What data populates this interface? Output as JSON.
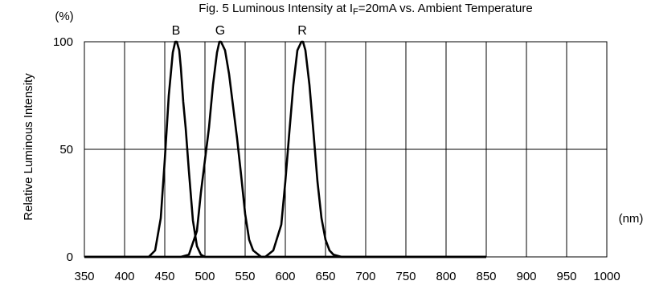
{
  "chart_data": {
    "type": "line",
    "title": "Fig. 5 Luminous Intensity at I",
    "title_subscript": "F",
    "title_suffix": "=20mA vs. Ambient Temperature",
    "ylabel": "Relative Luminous Intensity",
    "y_unit": "(%)",
    "x_unit": "(nm)",
    "xlim": [
      350,
      1000
    ],
    "ylim": [
      0,
      100
    ],
    "x_ticks": [
      350,
      400,
      450,
      500,
      550,
      600,
      650,
      700,
      750,
      800,
      850,
      900,
      950,
      1000
    ],
    "y_ticks": [
      0,
      50,
      100
    ],
    "grid": true,
    "series": [
      {
        "name": "B",
        "x": [
          350,
          430,
          438,
          445,
          450,
          455,
          460,
          463,
          465,
          468,
          470,
          473,
          476,
          480,
          485,
          490,
          495,
          500,
          510,
          850
        ],
        "y": [
          0,
          0,
          3,
          18,
          45,
          75,
          95,
          100,
          100,
          96,
          88,
          72,
          60,
          40,
          17,
          5,
          1,
          0,
          0,
          0
        ]
      },
      {
        "name": "G",
        "x": [
          350,
          470,
          480,
          490,
          495,
          500,
          505,
          510,
          515,
          518,
          520,
          525,
          530,
          535,
          540,
          545,
          550,
          555,
          560,
          570,
          580,
          850
        ],
        "y": [
          0,
          0,
          1,
          12,
          30,
          45,
          60,
          80,
          95,
          100,
          100,
          96,
          85,
          70,
          55,
          38,
          20,
          8,
          3,
          0,
          0,
          0
        ]
      },
      {
        "name": "R",
        "x": [
          350,
          575,
          585,
          595,
          600,
          605,
          610,
          615,
          620,
          622,
          625,
          630,
          635,
          640,
          645,
          650,
          655,
          660,
          670,
          680,
          850
        ],
        "y": [
          0,
          0,
          3,
          15,
          35,
          58,
          80,
          96,
          100,
          100,
          96,
          80,
          58,
          35,
          18,
          8,
          3,
          1,
          0,
          0,
          0
        ]
      }
    ]
  }
}
